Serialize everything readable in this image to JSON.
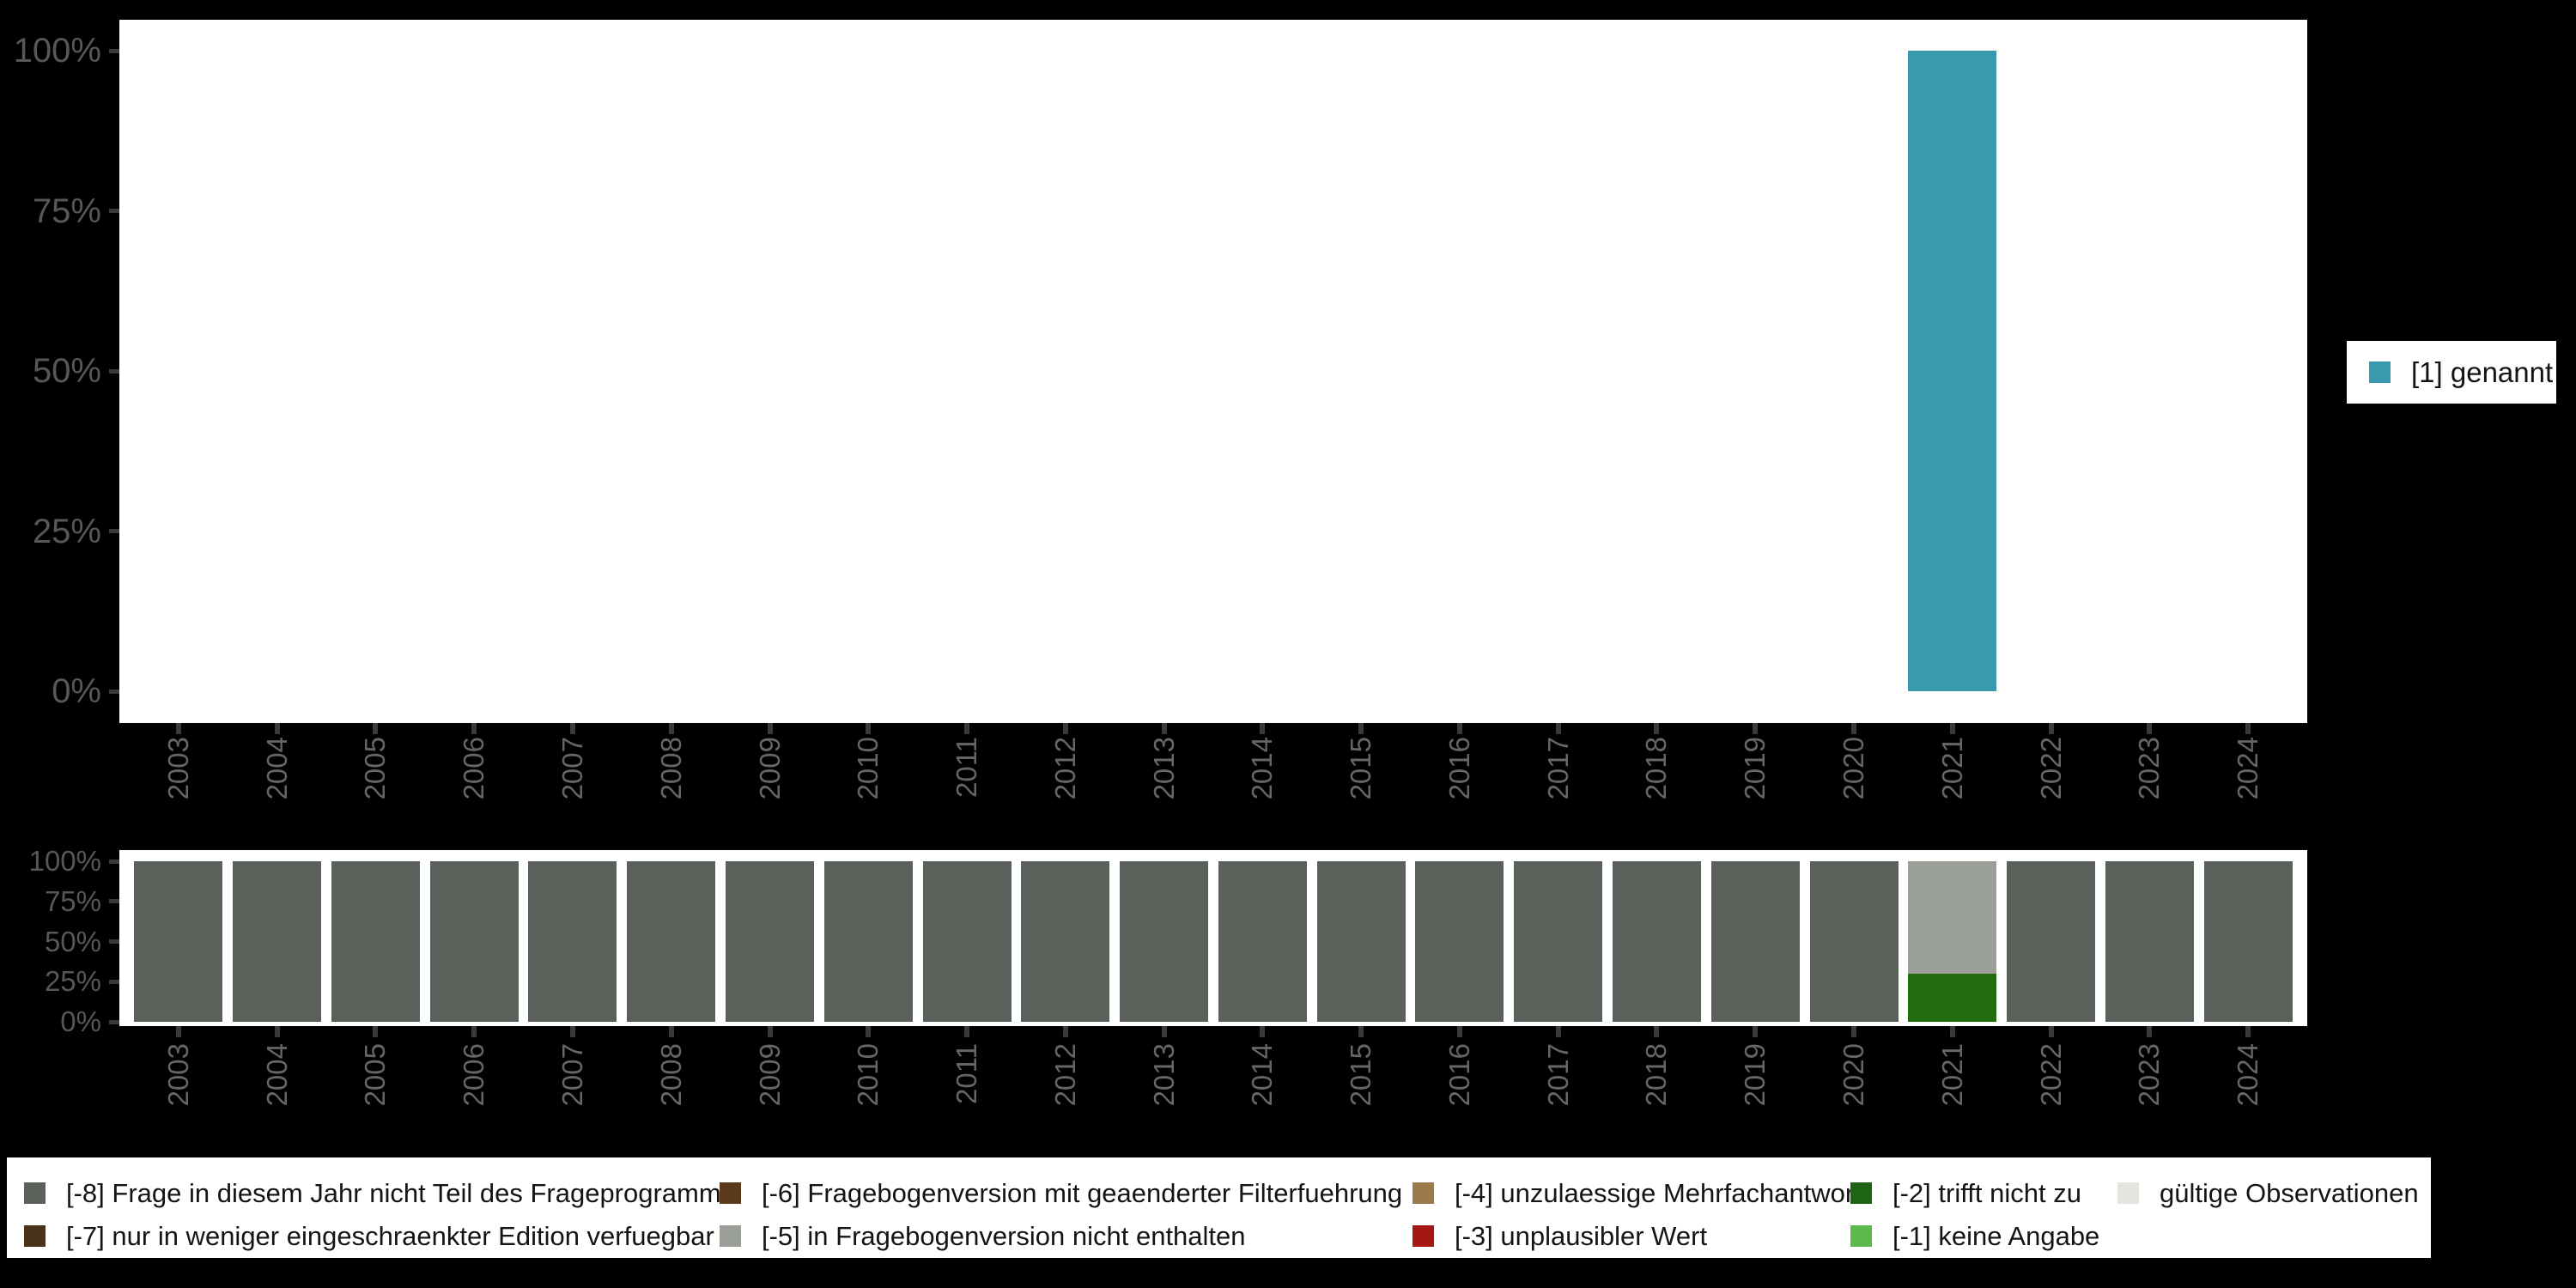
{
  "background_color": "#000000",
  "axis_style": {
    "tick_color": "#3a3a3a",
    "y_label_color": "#575757",
    "x_label_color": "#666666"
  },
  "chart_data": [
    {
      "type": "bar",
      "title": "",
      "xlabel": "",
      "ylabel": "",
      "ylim": [
        0,
        100
      ],
      "grid": false,
      "legend_position": "right",
      "y_tick_labels": [
        "100%",
        "75%",
        "50%",
        "25%",
        "0%"
      ],
      "categories": [
        "2003",
        "2004",
        "2005",
        "2006",
        "2007",
        "2008",
        "2009",
        "2010",
        "2011",
        "2012",
        "2013",
        "2014",
        "2015",
        "2016",
        "2017",
        "2018",
        "2019",
        "2020",
        "2021",
        "2022",
        "2023",
        "2024"
      ],
      "series": [
        {
          "name": "[1] genannt",
          "color": "#3999ae",
          "values": [
            0,
            0,
            0,
            0,
            0,
            0,
            0,
            0,
            0,
            0,
            0,
            0,
            0,
            0,
            0,
            0,
            0,
            0,
            100,
            0,
            0,
            0
          ]
        }
      ]
    },
    {
      "type": "bar",
      "stacked": true,
      "title": "",
      "xlabel": "",
      "ylabel": "",
      "ylim": [
        0,
        100
      ],
      "grid": false,
      "legend_position": "bottom",
      "y_tick_labels": [
        "100%",
        "75%",
        "50%",
        "25%",
        "0%"
      ],
      "categories": [
        "2003",
        "2004",
        "2005",
        "2006",
        "2007",
        "2008",
        "2009",
        "2010",
        "2011",
        "2012",
        "2013",
        "2014",
        "2015",
        "2016",
        "2017",
        "2018",
        "2019",
        "2020",
        "2021",
        "2022",
        "2023",
        "2024"
      ],
      "series": [
        {
          "name": "[-8] Frage in diesem Jahr nicht Teil des Frageprogramms",
          "color": "#5a615a",
          "values": [
            100,
            100,
            100,
            100,
            100,
            100,
            100,
            100,
            100,
            100,
            100,
            100,
            100,
            100,
            100,
            100,
            100,
            100,
            0,
            100,
            100,
            100
          ]
        },
        {
          "name": "[-2] trifft nicht zu",
          "color": "#226c10",
          "values": [
            0,
            0,
            0,
            0,
            0,
            0,
            0,
            0,
            0,
            0,
            0,
            0,
            0,
            0,
            0,
            0,
            0,
            0,
            30,
            0,
            0,
            0
          ]
        },
        {
          "name": "[-5] in Fragebogenversion nicht enthalten",
          "color": "#9aa098",
          "values": [
            0,
            0,
            0,
            0,
            0,
            0,
            0,
            0,
            0,
            0,
            0,
            0,
            0,
            0,
            0,
            0,
            0,
            0,
            70,
            0,
            0,
            0
          ]
        }
      ]
    }
  ],
  "legend_right": {
    "items": [
      {
        "label": "[1] genannt",
        "color": "#3999ae"
      }
    ]
  },
  "legend_bottom": {
    "rows": [
      [
        {
          "label": "[-8] Frage in diesem Jahr nicht Teil des Frageprogramms",
          "color": "#5a615a"
        },
        {
          "label": "[-6] Fragebogenversion mit geaenderter Filterfuehrung",
          "color": "#5c3a1c"
        },
        {
          "label": "[-4] unzulaessige Mehrfachantwort",
          "color": "#9b7a4a"
        },
        {
          "label": "[-2] trifft nicht zu",
          "color": "#1e6414"
        },
        {
          "label": "gültige Observationen",
          "color": "#e2e6de"
        }
      ],
      [
        {
          "label": "[-7] nur in weniger eingeschraenkter Edition verfuegbar",
          "color": "#4a311a"
        },
        {
          "label": "[-5] in Fragebogenversion nicht enthalten",
          "color": "#9aa098"
        },
        {
          "label": "[-3] unplausibler Wert",
          "color": "#a61612"
        },
        {
          "label": "[-1] keine Angabe",
          "color": "#5cba4c"
        }
      ]
    ]
  }
}
